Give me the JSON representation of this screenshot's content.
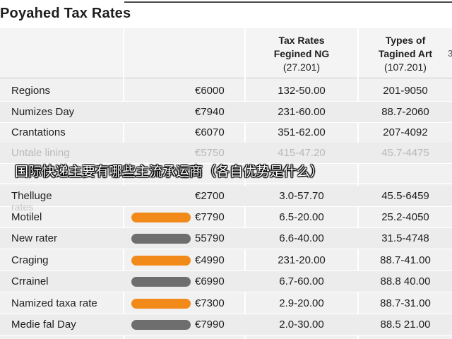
{
  "title": "Poyahed Tax Rates",
  "headers": {
    "col3": {
      "line1": "Tax Rates",
      "line2": "Fegined NG",
      "line3": "(27.201)"
    },
    "col4": {
      "line1": "Types of",
      "line2": "Tagined Art",
      "line3": "(107.201)"
    },
    "edge": "3"
  },
  "rows": [
    {
      "region": "Regions",
      "amount": "€6000",
      "rate": "132-50.00",
      "art": "201-9050",
      "bar": null
    },
    {
      "region": "Numizes Day",
      "amount": "€7940",
      "rate": "231-60.00",
      "art": "88.7-2060",
      "bar": null
    },
    {
      "region": "Crantations",
      "amount": "€6070",
      "rate": "351-62.00",
      "art": "207-4092",
      "bar": null
    },
    {
      "region": "Untale lining",
      "amount": "€5750",
      "rate": "415-47.20",
      "art": "45.7-4475",
      "bar": null,
      "faded": true
    },
    {
      "region": "",
      "amount": "",
      "rate": "",
      "art": "",
      "bar": null
    },
    {
      "region": "Thelluge",
      "amount": "€2700",
      "rate": "3.0-57.70",
      "art": "45.5-6459",
      "bar": null
    },
    {
      "region": "Motilel",
      "amount": "€7790",
      "rate": "6.5-20.00",
      "art": "25.2-4050",
      "bar": "orange"
    },
    {
      "region": "New rater",
      "amount": "55790",
      "rate": "6.6-40.00",
      "art": "31.5-4748",
      "bar": "gray"
    },
    {
      "region": "Craging",
      "amount": "€4990",
      "rate": "231-20.00",
      "art": "88.7-41.00",
      "bar": "orange"
    },
    {
      "region": "Crrainel",
      "amount": "€6990",
      "rate": "6.7-60.00",
      "art": "88.8 40.00",
      "bar": "gray"
    },
    {
      "region": "Namized taxa rate",
      "amount": "€7300",
      "rate": "2.9-20.00",
      "art": "88.7-31.00",
      "bar": "orange"
    },
    {
      "region": "Medie fal Day",
      "amount": "€7990",
      "rate": "2.0-30.00",
      "art": "88.5 21.00",
      "bar": "gray"
    }
  ],
  "partial_label": "rates",
  "overlay_text": "国际快递主要有哪些主流承运商（各自优势是什么）",
  "colors": {
    "orange": "#f28a1a",
    "gray": "#6e6e6e"
  }
}
